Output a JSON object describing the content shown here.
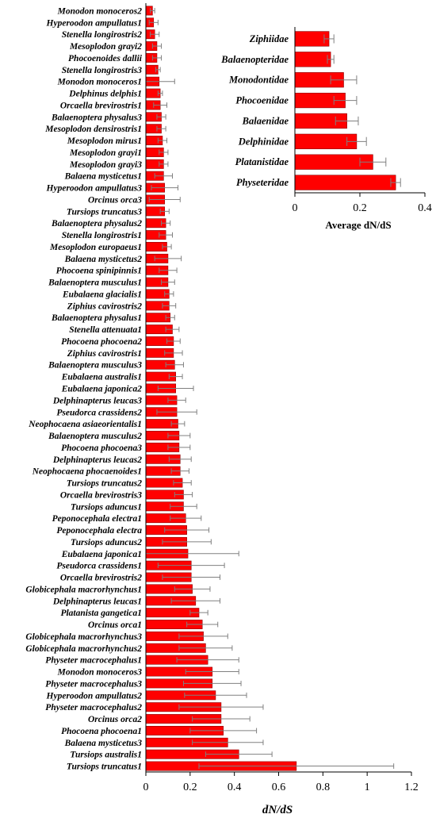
{
  "colors": {
    "bar": "#ff0000",
    "bar_stroke": "#8b0000",
    "error": "#808080",
    "axis": "#000000"
  },
  "chart_data": [
    {
      "type": "bar",
      "orientation": "horizontal",
      "title": "",
      "xlabel": "dN/dS",
      "ylabel": "",
      "xlim": [
        0,
        1.2
      ],
      "xticks": [
        "0",
        "0.2",
        "0.4",
        "0.6",
        "0.8",
        "1",
        "1.2"
      ],
      "grid": false,
      "categories": [
        "Monodon monoceros2",
        "Hyperoodon ampullatus1",
        "Stenella longirostris2",
        "Mesoplodon grayi2",
        "Phocoenoides dallii",
        "Stenella longirostris3",
        "Monodon monoceros1",
        "Delphinus delphis1",
        "Orcaella brevirostris1",
        "Balaenoptera physalus3",
        "Mesoplodon densirostris1",
        "Mesoplodon mirus1",
        "Mesoplodon grayi1",
        "Mesoplodon grayi3",
        "Balaena mysticetus1",
        "Hyperoodon ampullatus3",
        "Orcinus orca3",
        "Tursiops truncatus3",
        "Balaenoptera physalus2",
        "Stenella longirostris1",
        "Mesoplodon europaeus1",
        "Balaena mysticetus2",
        "Phocoena spinipinnis1",
        "Balaenoptera musculus1",
        "Eubalaena glacialis1",
        "Ziphius cavirostris2",
        "Balaenoptera physalus1",
        "Stenella attenuata1",
        "Phocoena phocoena2",
        "Ziphius cavirostris1",
        "Balaenoptera musculus3",
        "Eubalaena australis1",
        "Eubalaena japonica2",
        "Delphinapterus leucas3",
        "Pseudorca crassidens2",
        "Neophocaena asiaeorientalis1",
        "Balaenoptera musculus2",
        "Phocoena phocoena3",
        "Delphinapterus leucas2",
        "Neophocaena phocaenoides1",
        "Tursiops truncatus2",
        "Orcaella brevirostris3",
        "Tursiops aduncus1",
        "Peponocephala electra1",
        "Peponocephala electra",
        "Tursiops aduncus2",
        "Eubalaena japonica1",
        "Pseudorca crassidens1",
        "Orcaella brevirostris2",
        "Globicephala macrorhynchus1",
        "Delphinapterus leucas1",
        "Platanista gangetica1",
        "Orcinus orca1",
        "Globicephala macrorhynchus3",
        "Globicephala macrorhynchus2",
        "Physeter macrocephalus1",
        "Monodon monoceros3",
        "Physeter macrocephalus3",
        "Hyperoodon ampullatus2",
        "Physeter macrocephalus2",
        "Orcinus orca2",
        "Phocoena phocoena1",
        "Balaena mysticetus3",
        "Tursiops australis1",
        "Tursiops truncatus1"
      ],
      "values": [
        0.03,
        0.035,
        0.04,
        0.05,
        0.05,
        0.055,
        0.06,
        0.065,
        0.065,
        0.07,
        0.07,
        0.075,
        0.08,
        0.08,
        0.08,
        0.085,
        0.085,
        0.085,
        0.09,
        0.09,
        0.095,
        0.1,
        0.1,
        0.1,
        0.105,
        0.105,
        0.11,
        0.12,
        0.125,
        0.125,
        0.13,
        0.135,
        0.135,
        0.14,
        0.14,
        0.145,
        0.15,
        0.15,
        0.155,
        0.155,
        0.165,
        0.17,
        0.17,
        0.18,
        0.185,
        0.185,
        0.19,
        0.205,
        0.205,
        0.21,
        0.225,
        0.24,
        0.255,
        0.26,
        0.27,
        0.28,
        0.3,
        0.3,
        0.315,
        0.34,
        0.34,
        0.35,
        0.37,
        0.42,
        0.68
      ],
      "errors": [
        0.01,
        0.02,
        0.02,
        0.02,
        0.02,
        0.01,
        0.07,
        0.01,
        0.03,
        0.02,
        0.02,
        0.02,
        0.02,
        0.02,
        0.04,
        0.06,
        0.07,
        0.02,
        0.02,
        0.03,
        0.02,
        0.06,
        0.04,
        0.03,
        0.02,
        0.03,
        0.02,
        0.03,
        0.03,
        0.04,
        0.04,
        0.03,
        0.08,
        0.04,
        0.09,
        0.03,
        0.05,
        0.05,
        0.05,
        0.04,
        0.04,
        0.04,
        0.06,
        0.07,
        0.1,
        0.11,
        0.23,
        0.15,
        0.13,
        0.08,
        0.11,
        0.04,
        0.07,
        0.11,
        0.12,
        0.14,
        0.12,
        0.13,
        0.14,
        0.19,
        0.13,
        0.15,
        0.16,
        0.15,
        0.44
      ]
    },
    {
      "type": "bar",
      "orientation": "horizontal",
      "title": "",
      "xlabel": "Average dN/dS",
      "ylabel": "",
      "xlim": [
        0,
        0.4
      ],
      "xticks": [
        "0",
        "0.2",
        "0.4"
      ],
      "grid": false,
      "categories": [
        "Ziphiidae",
        "Balaenopteridae",
        "Monodontidae",
        "Phocoenidae",
        "Balaenidae",
        "Delphinidae",
        "Platanistidae",
        "Physeteridae"
      ],
      "values": [
        0.105,
        0.11,
        0.15,
        0.155,
        0.16,
        0.19,
        0.24,
        0.31
      ],
      "errors": [
        0.015,
        0.01,
        0.04,
        0.035,
        0.035,
        0.03,
        0.04,
        0.015
      ]
    }
  ]
}
